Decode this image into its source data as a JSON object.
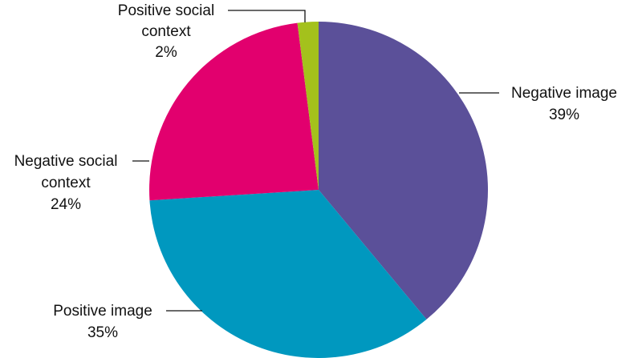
{
  "chart_data": {
    "type": "pie",
    "start_angle_deg": 0,
    "direction": "clockwise",
    "slices": [
      {
        "label_lines": [
          "Negative image"
        ],
        "value": 39,
        "value_label": "39%",
        "color": "#5b5099"
      },
      {
        "label_lines": [
          "Positive image"
        ],
        "value": 35,
        "value_label": "35%",
        "color": "#0098bf"
      },
      {
        "label_lines": [
          "Negative social",
          "context"
        ],
        "value": 24,
        "value_label": "24%",
        "color": "#e2006e"
      },
      {
        "label_lines": [
          "Positive social",
          "context"
        ],
        "value": 2,
        "value_label": "2%",
        "color": "#a4c11c"
      }
    ]
  }
}
